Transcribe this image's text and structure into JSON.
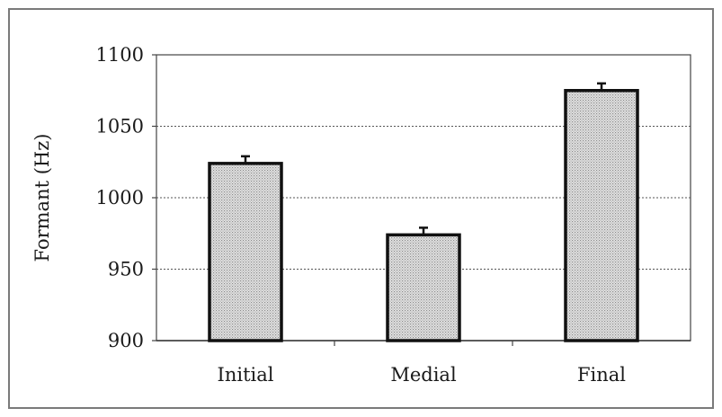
{
  "chart_data": {
    "type": "bar",
    "title": "",
    "xlabel": "",
    "ylabel": "Formant (Hz)",
    "categories": [
      "Initial",
      "Medial",
      "Final"
    ],
    "values": [
      1024,
      974,
      1075
    ],
    "error_bars": [
      5,
      5,
      5
    ],
    "ylim": [
      900,
      1100
    ],
    "yticks": [
      900,
      950,
      1000,
      1050,
      1100
    ],
    "grid": true,
    "legend": "none",
    "bar_fill": "#d6d6d6",
    "bar_stroke": "#111111",
    "grid_color": "#555555"
  }
}
